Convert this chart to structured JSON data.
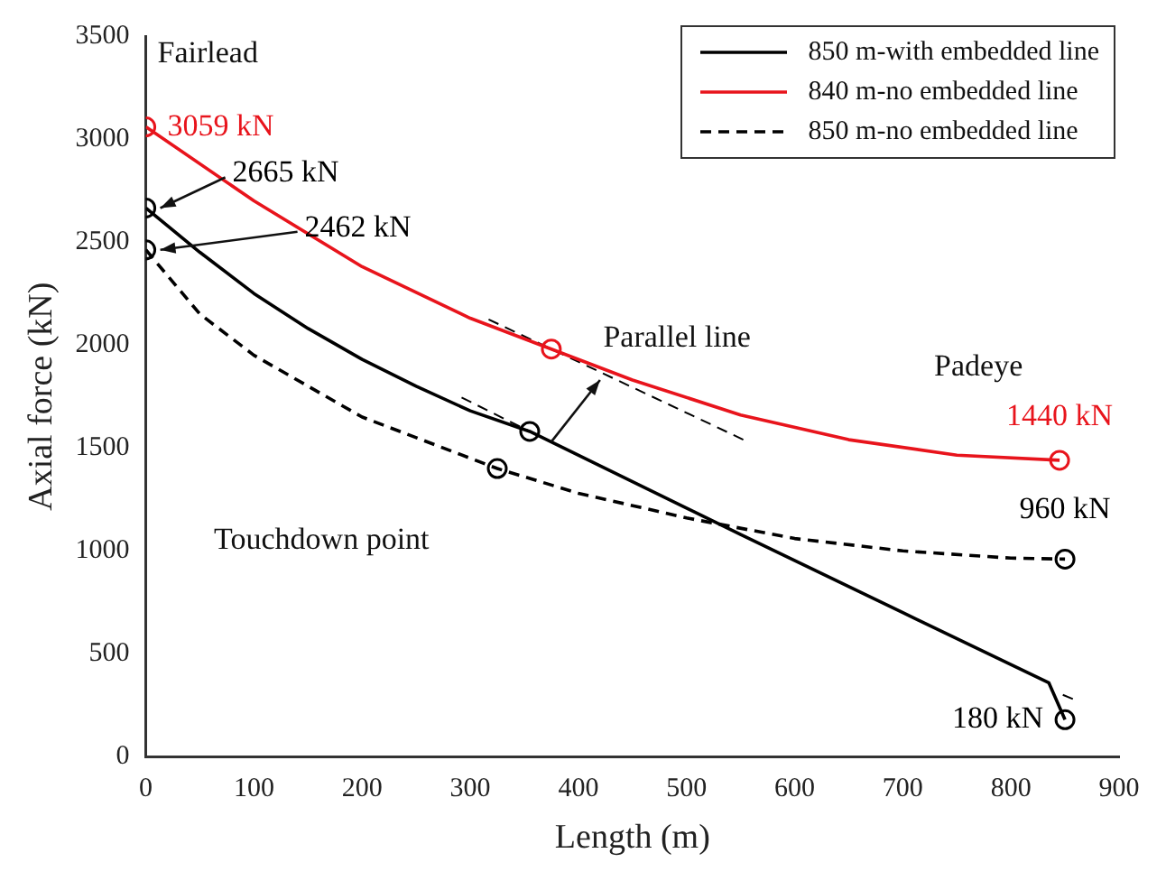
{
  "chart_data": {
    "type": "line",
    "xlabel": "Length (m)",
    "ylabel": "Axial force (kN)",
    "xlim": [
      0,
      900
    ],
    "xticks": [
      0,
      100,
      200,
      300,
      400,
      500,
      600,
      700,
      800,
      900
    ],
    "ylim": [
      0,
      3500
    ],
    "yticks": [
      0,
      500,
      1000,
      1500,
      2000,
      2500,
      3000,
      3500
    ],
    "grid": false,
    "legend": "top right",
    "series": [
      {
        "name": "850 m-with embedded line",
        "color": "#000000",
        "line_style": "solid",
        "marker": "none",
        "x": [
          0,
          50,
          100,
          150,
          200,
          250,
          300,
          355,
          550,
          700,
          835,
          850
        ],
        "values": [
          2665,
          2450,
          2250,
          2080,
          1930,
          1800,
          1680,
          1580,
          1080,
          700,
          360,
          180
        ]
      },
      {
        "name": "840 m-no embedded line",
        "color": "#e8141c",
        "line_style": "solid",
        "marker": "none",
        "x": [
          0,
          100,
          200,
          300,
          375,
          450,
          550,
          650,
          750,
          845
        ],
        "values": [
          3059,
          2700,
          2380,
          2130,
          1980,
          1830,
          1660,
          1540,
          1465,
          1440
        ]
      },
      {
        "name": "850 m-no embedded line",
        "color": "#000000",
        "line_style": "dashed",
        "marker": "none",
        "x": [
          0,
          50,
          100,
          200,
          325,
          400,
          500,
          600,
          700,
          800,
          850
        ],
        "values": [
          2462,
          2150,
          1950,
          1650,
          1400,
          1280,
          1160,
          1060,
          1000,
          965,
          960
        ]
      },
      {
        "type": "scatter",
        "color": "#000000",
        "marker": "circle",
        "x": [
          0,
          355,
          850,
          0,
          325,
          850
        ],
        "values": [
          2665,
          1580,
          180,
          2462,
          1400,
          960
        ]
      },
      {
        "type": "scatter",
        "color": "#e8141c",
        "marker": "circle",
        "x": [
          0,
          375,
          845
        ],
        "values": [
          3059,
          1980,
          1440
        ]
      },
      {
        "type": "line",
        "color": "#000000",
        "line_style": "dashed",
        "marker": "none",
        "x": [
          317,
          553
        ],
        "values": [
          2124,
          1539
        ]
      },
      {
        "type": "line",
        "color": "#000000",
        "line_style": "dashed",
        "marker": "none",
        "x": [
          292,
          355
        ],
        "values": [
          1745,
          1580
        ]
      },
      {
        "type": "line",
        "color": "#000000",
        "line_style": "dashed",
        "marker": "none",
        "x": [
          848,
          860
        ],
        "values": [
          301,
          275
        ]
      }
    ],
    "annotations": [
      "Fairlead",
      "Padeye",
      "Touchdown point",
      "Parallel line",
      {
        "text": "3059 kN",
        "x": 0,
        "y": 3059
      },
      {
        "text": "2665 kN",
        "x": 0,
        "y": 2665
      },
      {
        "text": "2462 kN",
        "x": 0,
        "y": 2462
      },
      {
        "text": "1440 kN",
        "x": 845,
        "y": 1440
      },
      {
        "text": "960 kN",
        "x": 850,
        "y": 960
      },
      {
        "text": "180 kN",
        "x": 850,
        "y": 180
      }
    ]
  }
}
